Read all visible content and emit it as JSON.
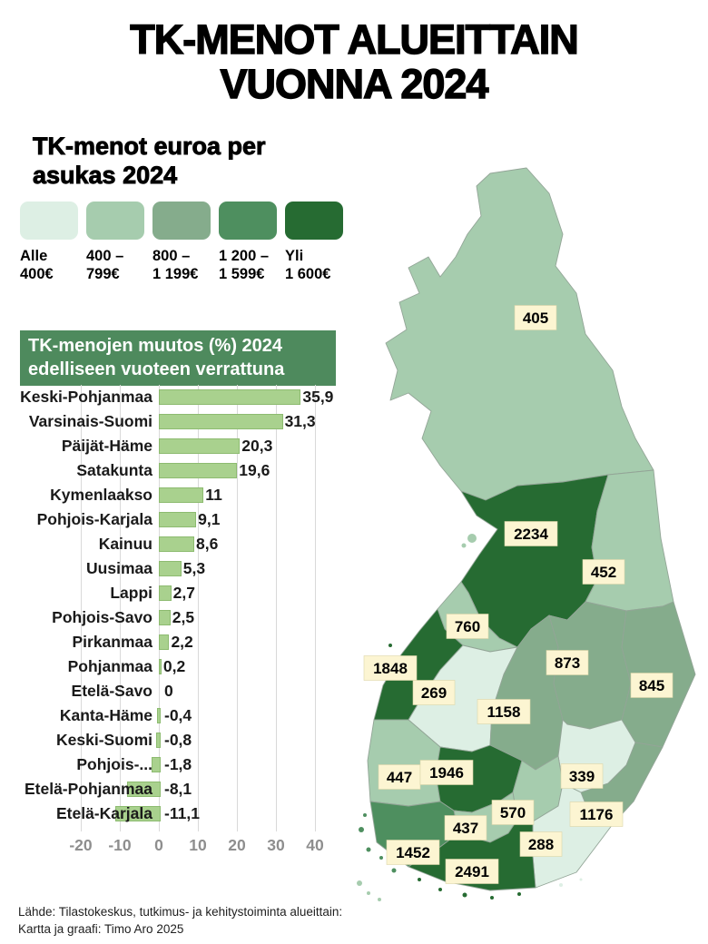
{
  "page_title": {
    "line1": "TK-MENOT ALUEITTAIN",
    "line2": "VUONNA 2024"
  },
  "legend": {
    "title_line1": "TK-menot euroa per",
    "title_line2": "asukas 2024",
    "colors": [
      "#ddefe4",
      "#a6ccae",
      "#85ac8c",
      "#4e8f5f",
      "#266b32"
    ],
    "items": [
      {
        "line1": "Alle",
        "line2": "400€"
      },
      {
        "line1": "400 –",
        "line2": "799€"
      },
      {
        "line1": "800 –",
        "line2": "1 199€"
      },
      {
        "line1": "1 200 –",
        "line2": "1 599€"
      },
      {
        "line1": "Yli",
        "line2": "1 600€"
      }
    ]
  },
  "chart_data": {
    "type": "bar",
    "orientation": "horizontal",
    "title_line1": "TK-menojen muutos (%) 2024",
    "title_line2": "edelliseen vuoteen verrattuna",
    "categories": [
      "Keski-Pohjanmaa",
      "Varsinais-Suomi",
      "Päijät-Häme",
      "Satakunta",
      "Kymenlaakso",
      "Pohjois-Karjala",
      "Kainuu",
      "Uusimaa",
      "Lappi",
      "Pohjois-Savo",
      "Pirkanmaa",
      "Pohjanmaa",
      "Etelä-Savo",
      "Kanta-Häme",
      "Keski-Suomi",
      "Pohjois-...",
      "Etelä-Pohjanmaa",
      "Etelä-Karjala"
    ],
    "values": [
      35.9,
      31.3,
      20.3,
      19.6,
      11,
      9.1,
      8.6,
      5.3,
      2.7,
      2.5,
      2.2,
      0.2,
      0,
      -0.4,
      -0.8,
      -1.8,
      -8.1,
      -11.1
    ],
    "value_labels": [
      "35,9",
      "31,3",
      "20,3",
      "19,6",
      "11",
      "9,1",
      "8,6",
      "5,3",
      "2,7",
      "2,5",
      "2,2",
      "0,2",
      "0",
      "-0,4",
      "-0,8",
      "-1,8",
      "-8,1",
      "-11,1"
    ],
    "xticks": [
      -20,
      -10,
      0,
      10,
      20,
      30,
      40
    ],
    "xlim": [
      -24,
      42
    ],
    "bar_color": "#a9d18e",
    "bar_border": "#8dbb70",
    "grid_on": true,
    "grid_color": "#d9d9d9",
    "tick_color": "#8e8e8e",
    "title_bg": "#4e8a5d",
    "title_color": "#ffffff"
  },
  "map": {
    "label_bg": "#fcf5d2",
    "regions": [
      {
        "key": "lappi",
        "value": "405",
        "category": 1
      },
      {
        "key": "pohjois-pohjanmaa",
        "value": "2234",
        "category": 4
      },
      {
        "key": "kainuu",
        "value": "452",
        "category": 1
      },
      {
        "key": "keski-pohjanmaa",
        "value": "760",
        "category": 1
      },
      {
        "key": "pohjanmaa",
        "value": "1848",
        "category": 4
      },
      {
        "key": "etela-pohjanmaa",
        "value": "269",
        "category": 0
      },
      {
        "key": "keski-suomi",
        "value": "1158",
        "category": 2
      },
      {
        "key": "pohjois-savo",
        "value": "873",
        "category": 2
      },
      {
        "key": "pohjois-karjala",
        "value": "845",
        "category": 2
      },
      {
        "key": "satakunta",
        "value": "447",
        "category": 1
      },
      {
        "key": "pirkanmaa",
        "value": "1946",
        "category": 4
      },
      {
        "key": "etela-savo",
        "value": "339",
        "category": 0
      },
      {
        "key": "paijat-hame",
        "value": "570",
        "category": 1
      },
      {
        "key": "etela-karjala",
        "value": "1176",
        "category": 2
      },
      {
        "key": "kanta-hame",
        "value": "437",
        "category": 1
      },
      {
        "key": "kymenlaakso",
        "value": "288",
        "category": 0
      },
      {
        "key": "varsinais-suomi",
        "value": "1452",
        "category": 3
      },
      {
        "key": "uusimaa",
        "value": "2491",
        "category": 4
      }
    ]
  },
  "footer": {
    "line1": "Lähde: Tilastokeskus, tutkimus- ja kehitystoiminta alueittain:",
    "line2": "Kartta ja graafi: Timo Aro 2025"
  }
}
